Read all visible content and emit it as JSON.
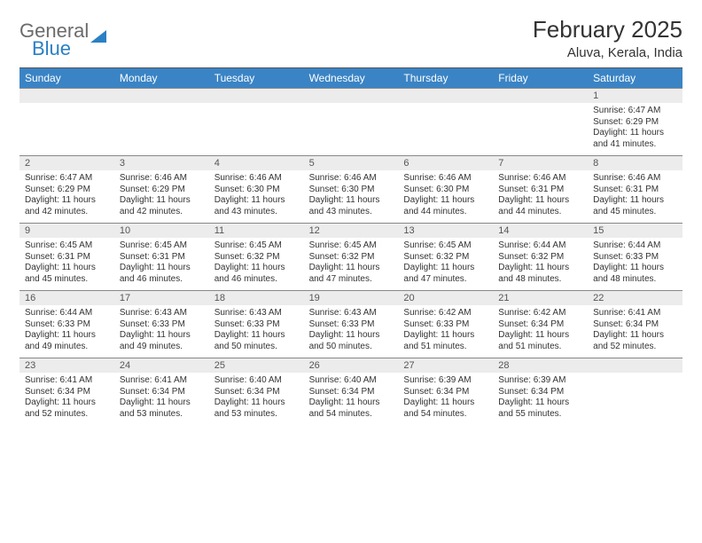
{
  "logo": {
    "word1": "General",
    "word2": "Blue"
  },
  "title": "February 2025",
  "location": "Aluva, Kerala, India",
  "day_headers": [
    "Sunday",
    "Monday",
    "Tuesday",
    "Wednesday",
    "Thursday",
    "Friday",
    "Saturday"
  ],
  "colors": {
    "header_bar": "#3a84c5",
    "daynum_bg": "#ececec",
    "accent_blue": "#2a80c4",
    "text_gray": "#6b6b6b"
  },
  "weeks": [
    [
      null,
      null,
      null,
      null,
      null,
      null,
      {
        "n": "1",
        "sunrise": "6:47 AM",
        "sunset": "6:29 PM",
        "daylight": "11 hours and 41 minutes."
      }
    ],
    [
      {
        "n": "2",
        "sunrise": "6:47 AM",
        "sunset": "6:29 PM",
        "daylight": "11 hours and 42 minutes."
      },
      {
        "n": "3",
        "sunrise": "6:46 AM",
        "sunset": "6:29 PM",
        "daylight": "11 hours and 42 minutes."
      },
      {
        "n": "4",
        "sunrise": "6:46 AM",
        "sunset": "6:30 PM",
        "daylight": "11 hours and 43 minutes."
      },
      {
        "n": "5",
        "sunrise": "6:46 AM",
        "sunset": "6:30 PM",
        "daylight": "11 hours and 43 minutes."
      },
      {
        "n": "6",
        "sunrise": "6:46 AM",
        "sunset": "6:30 PM",
        "daylight": "11 hours and 44 minutes."
      },
      {
        "n": "7",
        "sunrise": "6:46 AM",
        "sunset": "6:31 PM",
        "daylight": "11 hours and 44 minutes."
      },
      {
        "n": "8",
        "sunrise": "6:46 AM",
        "sunset": "6:31 PM",
        "daylight": "11 hours and 45 minutes."
      }
    ],
    [
      {
        "n": "9",
        "sunrise": "6:45 AM",
        "sunset": "6:31 PM",
        "daylight": "11 hours and 45 minutes."
      },
      {
        "n": "10",
        "sunrise": "6:45 AM",
        "sunset": "6:31 PM",
        "daylight": "11 hours and 46 minutes."
      },
      {
        "n": "11",
        "sunrise": "6:45 AM",
        "sunset": "6:32 PM",
        "daylight": "11 hours and 46 minutes."
      },
      {
        "n": "12",
        "sunrise": "6:45 AM",
        "sunset": "6:32 PM",
        "daylight": "11 hours and 47 minutes."
      },
      {
        "n": "13",
        "sunrise": "6:45 AM",
        "sunset": "6:32 PM",
        "daylight": "11 hours and 47 minutes."
      },
      {
        "n": "14",
        "sunrise": "6:44 AM",
        "sunset": "6:32 PM",
        "daylight": "11 hours and 48 minutes."
      },
      {
        "n": "15",
        "sunrise": "6:44 AM",
        "sunset": "6:33 PM",
        "daylight": "11 hours and 48 minutes."
      }
    ],
    [
      {
        "n": "16",
        "sunrise": "6:44 AM",
        "sunset": "6:33 PM",
        "daylight": "11 hours and 49 minutes."
      },
      {
        "n": "17",
        "sunrise": "6:43 AM",
        "sunset": "6:33 PM",
        "daylight": "11 hours and 49 minutes."
      },
      {
        "n": "18",
        "sunrise": "6:43 AM",
        "sunset": "6:33 PM",
        "daylight": "11 hours and 50 minutes."
      },
      {
        "n": "19",
        "sunrise": "6:43 AM",
        "sunset": "6:33 PM",
        "daylight": "11 hours and 50 minutes."
      },
      {
        "n": "20",
        "sunrise": "6:42 AM",
        "sunset": "6:33 PM",
        "daylight": "11 hours and 51 minutes."
      },
      {
        "n": "21",
        "sunrise": "6:42 AM",
        "sunset": "6:34 PM",
        "daylight": "11 hours and 51 minutes."
      },
      {
        "n": "22",
        "sunrise": "6:41 AM",
        "sunset": "6:34 PM",
        "daylight": "11 hours and 52 minutes."
      }
    ],
    [
      {
        "n": "23",
        "sunrise": "6:41 AM",
        "sunset": "6:34 PM",
        "daylight": "11 hours and 52 minutes."
      },
      {
        "n": "24",
        "sunrise": "6:41 AM",
        "sunset": "6:34 PM",
        "daylight": "11 hours and 53 minutes."
      },
      {
        "n": "25",
        "sunrise": "6:40 AM",
        "sunset": "6:34 PM",
        "daylight": "11 hours and 53 minutes."
      },
      {
        "n": "26",
        "sunrise": "6:40 AM",
        "sunset": "6:34 PM",
        "daylight": "11 hours and 54 minutes."
      },
      {
        "n": "27",
        "sunrise": "6:39 AM",
        "sunset": "6:34 PM",
        "daylight": "11 hours and 54 minutes."
      },
      {
        "n": "28",
        "sunrise": "6:39 AM",
        "sunset": "6:34 PM",
        "daylight": "11 hours and 55 minutes."
      },
      null
    ]
  ],
  "labels": {
    "sunrise": "Sunrise: ",
    "sunset": "Sunset: ",
    "daylight": "Daylight: "
  }
}
